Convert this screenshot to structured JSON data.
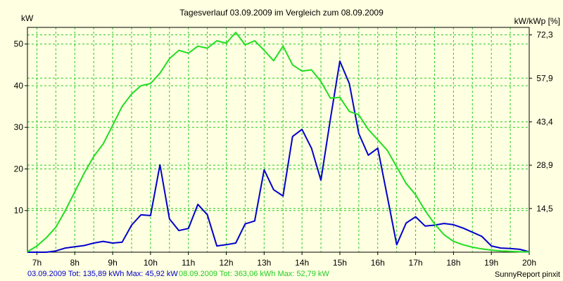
{
  "chart_data": {
    "type": "line",
    "title": "Tagesverlauf 03.09.2009 im Vergleich zum 08.09.2009",
    "ylabel_left": "kW",
    "ylabel_right": "kW/kWp [%]",
    "x_tick_labels": [
      "7h",
      "8h",
      "9h",
      "10h",
      "11h",
      "12h",
      "13h",
      "14h",
      "15h",
      "16h",
      "17h",
      "18h",
      "19h",
      "20h"
    ],
    "xlim": [
      6.75,
      20.0
    ],
    "ylim": [
      0,
      54
    ],
    "y_ticks_left": [
      10,
      20,
      30,
      40,
      50
    ],
    "y_tick_labels_right": [
      {
        "at": 10.5,
        "label": "14,5"
      },
      {
        "at": 20.9,
        "label": "28,9"
      },
      {
        "at": 31.3,
        "label": "43,4"
      },
      {
        "at": 41.8,
        "label": "57,9"
      },
      {
        "at": 52.2,
        "label": "72,3"
      }
    ],
    "grid": true,
    "series": [
      {
        "color": "#0000cc",
        "points": [
          [
            6.75,
            0
          ],
          [
            7.0,
            0
          ],
          [
            7.25,
            0
          ],
          [
            7.5,
            0.3
          ],
          [
            7.75,
            1.0
          ],
          [
            8.0,
            1.3
          ],
          [
            8.25,
            1.6
          ],
          [
            8.5,
            2.2
          ],
          [
            8.75,
            2.6
          ],
          [
            9.0,
            2.2
          ],
          [
            9.25,
            2.4
          ],
          [
            9.5,
            6.5
          ],
          [
            9.75,
            9.0
          ],
          [
            10.0,
            8.8
          ],
          [
            10.25,
            21.0
          ],
          [
            10.5,
            8.0
          ],
          [
            10.75,
            5.2
          ],
          [
            11.0,
            5.7
          ],
          [
            11.25,
            11.5
          ],
          [
            11.5,
            9.0
          ],
          [
            11.75,
            1.5
          ],
          [
            12.0,
            1.8
          ],
          [
            12.25,
            2.2
          ],
          [
            12.5,
            6.8
          ],
          [
            12.75,
            7.5
          ],
          [
            13.0,
            19.8
          ],
          [
            13.25,
            15.0
          ],
          [
            13.5,
            13.5
          ],
          [
            13.75,
            27.8
          ],
          [
            14.0,
            29.5
          ],
          [
            14.25,
            25.0
          ],
          [
            14.5,
            17.3
          ],
          [
            14.75,
            32.0
          ],
          [
            15.0,
            45.9
          ],
          [
            15.25,
            40.5
          ],
          [
            15.5,
            28.5
          ],
          [
            15.75,
            23.3
          ],
          [
            16.0,
            25.0
          ],
          [
            16.25,
            13.5
          ],
          [
            16.5,
            1.8
          ],
          [
            16.75,
            7.0
          ],
          [
            17.0,
            8.5
          ],
          [
            17.25,
            6.3
          ],
          [
            17.5,
            6.5
          ],
          [
            17.75,
            6.9
          ],
          [
            18.0,
            6.6
          ],
          [
            18.25,
            5.8
          ],
          [
            18.5,
            4.8
          ],
          [
            18.75,
            3.8
          ],
          [
            19.0,
            1.5
          ],
          [
            19.25,
            1.0
          ],
          [
            19.5,
            0.9
          ],
          [
            19.75,
            0.7
          ],
          [
            20.0,
            0.1
          ]
        ]
      },
      {
        "color": "#22dd22",
        "points": [
          [
            6.75,
            0.1
          ],
          [
            7.0,
            1.5
          ],
          [
            7.25,
            3.5
          ],
          [
            7.5,
            6.0
          ],
          [
            7.75,
            10.0
          ],
          [
            8.0,
            14.5
          ],
          [
            8.25,
            19.0
          ],
          [
            8.5,
            23.0
          ],
          [
            8.75,
            26.0
          ],
          [
            9.0,
            30.5
          ],
          [
            9.25,
            35.0
          ],
          [
            9.5,
            38.0
          ],
          [
            9.75,
            40.0
          ],
          [
            10.0,
            40.5
          ],
          [
            10.25,
            43.0
          ],
          [
            10.5,
            46.5
          ],
          [
            10.75,
            48.5
          ],
          [
            11.0,
            47.8
          ],
          [
            11.25,
            49.5
          ],
          [
            11.5,
            49.0
          ],
          [
            11.75,
            50.8
          ],
          [
            12.0,
            50.2
          ],
          [
            12.25,
            52.8
          ],
          [
            12.5,
            49.8
          ],
          [
            12.75,
            50.8
          ],
          [
            13.0,
            48.5
          ],
          [
            13.25,
            46.0
          ],
          [
            13.5,
            49.5
          ],
          [
            13.75,
            45.0
          ],
          [
            14.0,
            43.5
          ],
          [
            14.25,
            43.8
          ],
          [
            14.5,
            41.0
          ],
          [
            14.75,
            37.0
          ],
          [
            15.0,
            37.2
          ],
          [
            15.25,
            33.8
          ],
          [
            15.5,
            33.0
          ],
          [
            15.75,
            29.5
          ],
          [
            16.0,
            27.0
          ],
          [
            16.25,
            24.5
          ],
          [
            16.5,
            20.5
          ],
          [
            16.75,
            16.5
          ],
          [
            17.0,
            13.8
          ],
          [
            17.25,
            10.0
          ],
          [
            17.5,
            6.8
          ],
          [
            17.75,
            4.2
          ],
          [
            18.0,
            2.6
          ],
          [
            18.25,
            1.8
          ],
          [
            18.5,
            1.2
          ],
          [
            18.75,
            0.8
          ],
          [
            19.0,
            0.5
          ],
          [
            19.25,
            0.3
          ],
          [
            19.5,
            0.2
          ],
          [
            19.75,
            0.1
          ],
          [
            20.0,
            0.1
          ]
        ]
      }
    ]
  },
  "footer": {
    "series1_text": "03.09.2009 Tot: 135,89 kWh Max: 45,92 kW",
    "series2_text": "08.09.2009 Tot: 363,06 kWh Max: 52,79 kW",
    "credit": "SunnyReport pinxit"
  },
  "colors": {
    "background": "#ffffe1",
    "grid": "#22cc22",
    "series1": "#0000cc",
    "series2": "#22dd22"
  }
}
